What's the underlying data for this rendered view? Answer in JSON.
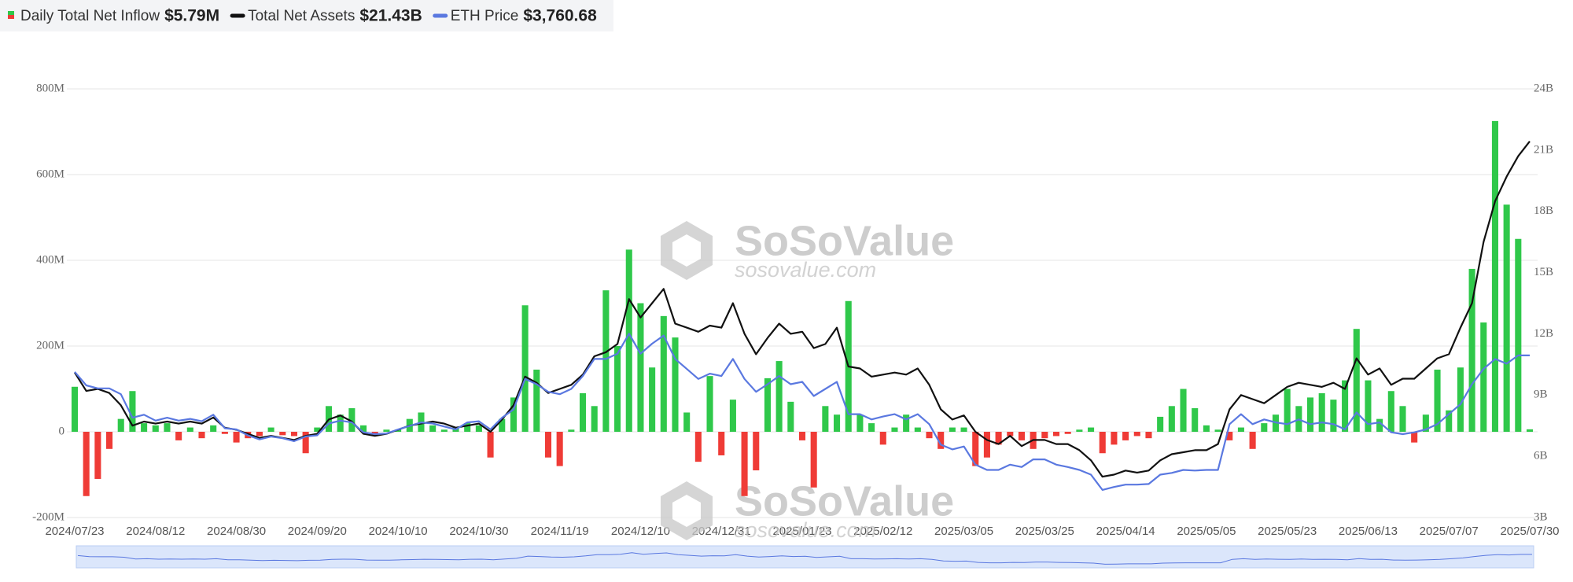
{
  "chart_data": {
    "type": "combo",
    "categories": [
      "2024/07/23",
      null,
      null,
      null,
      null,
      null,
      null,
      "2024/08/12",
      null,
      null,
      null,
      null,
      null,
      null,
      "2024/08/30",
      null,
      null,
      null,
      null,
      null,
      null,
      "2024/09/20",
      null,
      null,
      null,
      null,
      null,
      null,
      "2024/10/10",
      null,
      null,
      null,
      null,
      null,
      null,
      "2024/10/30",
      null,
      null,
      null,
      null,
      null,
      null,
      "2024/11/19",
      null,
      null,
      null,
      null,
      null,
      null,
      "2024/12/10",
      null,
      null,
      null,
      null,
      null,
      null,
      "2024/12/31",
      null,
      null,
      null,
      null,
      null,
      null,
      "2025/01/23",
      null,
      null,
      null,
      null,
      null,
      null,
      "2025/02/12",
      null,
      null,
      null,
      null,
      null,
      null,
      "2025/03/05",
      null,
      null,
      null,
      null,
      null,
      null,
      "2025/03/25",
      null,
      null,
      null,
      null,
      null,
      null,
      "2025/04/14",
      null,
      null,
      null,
      null,
      null,
      null,
      "2025/05/05",
      null,
      null,
      null,
      null,
      null,
      null,
      "2025/05/23",
      null,
      null,
      null,
      null,
      null,
      null,
      "2025/06/13",
      null,
      null,
      null,
      null,
      null,
      null,
      "2025/07/07",
      null,
      null,
      null,
      null,
      null,
      null,
      "2025/07/30"
    ],
    "series": [
      {
        "name": "Daily Total Net Inflow",
        "type": "bar",
        "latest_label": "$5.79M",
        "color": "#2fc84a",
        "negative_color": "#ef3b36",
        "values": [
          105,
          -150,
          -110,
          -40,
          30,
          95,
          20,
          15,
          20,
          -20,
          10,
          -15,
          15,
          -5,
          -25,
          -15,
          -10,
          10,
          -8,
          -10,
          -50,
          10,
          60,
          40,
          55,
          15,
          -10,
          5,
          5,
          30,
          45,
          15,
          5,
          10,
          20,
          15,
          -60,
          30,
          80,
          295,
          145,
          -60,
          -80,
          5,
          90,
          60,
          330,
          200,
          425,
          300,
          150,
          270,
          220,
          45,
          -70,
          130,
          -55,
          75,
          -150,
          -90,
          125,
          165,
          70,
          -20,
          -130,
          60,
          40,
          305,
          40,
          20,
          -30,
          10,
          40,
          10,
          -15,
          -40,
          10,
          10,
          -80,
          -60,
          -30,
          -10,
          -20,
          -40,
          -15,
          -10,
          -5,
          5,
          10,
          -50,
          -30,
          -20,
          -10,
          -15,
          35,
          60,
          100,
          55,
          15,
          5,
          -20,
          10,
          -40,
          20,
          40,
          100,
          60,
          80,
          90,
          75,
          120,
          240,
          120,
          30,
          95,
          60,
          -25,
          40,
          145,
          50,
          150,
          380,
          255,
          725,
          530,
          450,
          5.79
        ]
      },
      {
        "name": "Total Net Assets",
        "type": "line",
        "axis": "y2",
        "latest_label": "$21.43B",
        "color": "#111111",
        "values": [
          10.1,
          9.2,
          9.3,
          9.1,
          8.5,
          7.5,
          7.7,
          7.6,
          7.7,
          7.6,
          7.7,
          7.6,
          7.9,
          7.4,
          7.3,
          7.1,
          6.9,
          7.0,
          6.9,
          6.8,
          7.0,
          7.1,
          7.8,
          8.0,
          7.7,
          7.1,
          7.0,
          7.1,
          7.3,
          7.5,
          7.6,
          7.7,
          7.6,
          7.4,
          7.5,
          7.6,
          7.2,
          7.8,
          8.5,
          9.9,
          9.6,
          9.1,
          9.3,
          9.5,
          10.0,
          10.9,
          11.1,
          11.5,
          13.7,
          12.8,
          13.5,
          14.2,
          12.5,
          12.3,
          12.1,
          12.4,
          12.3,
          13.5,
          12.0,
          11.0,
          11.8,
          12.5,
          12.0,
          12.1,
          11.3,
          11.5,
          12.3,
          10.4,
          10.3,
          9.9,
          10.0,
          10.1,
          10.0,
          10.3,
          9.5,
          8.3,
          7.8,
          8.0,
          7.2,
          6.8,
          6.6,
          7.0,
          6.5,
          6.8,
          6.8,
          6.6,
          6.6,
          6.3,
          5.8,
          5.0,
          5.1,
          5.3,
          5.2,
          5.3,
          5.8,
          6.1,
          6.2,
          6.3,
          6.3,
          6.6,
          8.3,
          9.0,
          8.8,
          8.6,
          9.0,
          9.4,
          9.6,
          9.5,
          9.4,
          9.6,
          9.3,
          10.8,
          10.0,
          10.3,
          9.5,
          9.8,
          9.8,
          10.3,
          10.8,
          11.0,
          12.3,
          13.5,
          16.5,
          18.5,
          19.7,
          20.7,
          21.43
        ]
      },
      {
        "name": "ETH Price",
        "type": "line",
        "axis": "y3",
        "latest_label": "$3,760.68",
        "color": "#5a78e0",
        "values": [
          3480,
          3250,
          3200,
          3200,
          3100,
          2700,
          2750,
          2650,
          2700,
          2650,
          2680,
          2640,
          2750,
          2520,
          2500,
          2400,
          2330,
          2380,
          2350,
          2300,
          2380,
          2400,
          2600,
          2650,
          2620,
          2450,
          2420,
          2430,
          2500,
          2560,
          2620,
          2600,
          2550,
          2500,
          2620,
          2640,
          2500,
          2700,
          2840,
          3360,
          3270,
          3140,
          3100,
          3190,
          3410,
          3700,
          3700,
          3790,
          4130,
          3790,
          3960,
          4100,
          3700,
          3530,
          3360,
          3450,
          3410,
          3700,
          3360,
          3140,
          3270,
          3410,
          3270,
          3310,
          3070,
          3190,
          3310,
          2760,
          2760,
          2670,
          2720,
          2760,
          2670,
          2760,
          2590,
          2240,
          2160,
          2210,
          1900,
          1810,
          1810,
          1900,
          1860,
          1990,
          1990,
          1900,
          1860,
          1810,
          1730,
          1470,
          1520,
          1560,
          1560,
          1570,
          1730,
          1760,
          1810,
          1800,
          1810,
          1810,
          2590,
          2760,
          2590,
          2670,
          2620,
          2590,
          2670,
          2590,
          2620,
          2590,
          2500,
          2790,
          2590,
          2620,
          2450,
          2420,
          2450,
          2500,
          2590,
          2760,
          2930,
          3270,
          3530,
          3700,
          3620,
          3760,
          3760.68
        ]
      }
    ],
    "ylim": [
      -200,
      800
    ],
    "yticks": [
      {
        "value": -200,
        "label": "-200M"
      },
      0,
      {
        "value": 200,
        "label": "200M"
      },
      {
        "value": 400,
        "label": "400M"
      },
      {
        "value": 600,
        "label": "600M"
      },
      {
        "value": 800,
        "label": "800M"
      }
    ],
    "y2lim": [
      3,
      24
    ],
    "y2ticks": [
      {
        "value": 3,
        "label": "3B"
      },
      {
        "value": 6,
        "label": "6B"
      },
      {
        "value": 9,
        "label": "9B"
      },
      {
        "value": 12,
        "label": "12B"
      },
      {
        "value": 15,
        "label": "15B"
      },
      {
        "value": 18,
        "label": "18B"
      },
      {
        "value": 21,
        "label": "21B"
      },
      {
        "value": 24,
        "label": "24B"
      }
    ],
    "y3lim": [
      1000,
      8300
    ],
    "grid": true,
    "watermark": {
      "name": "SoSoValue",
      "url": "sosovalue.com"
    }
  }
}
